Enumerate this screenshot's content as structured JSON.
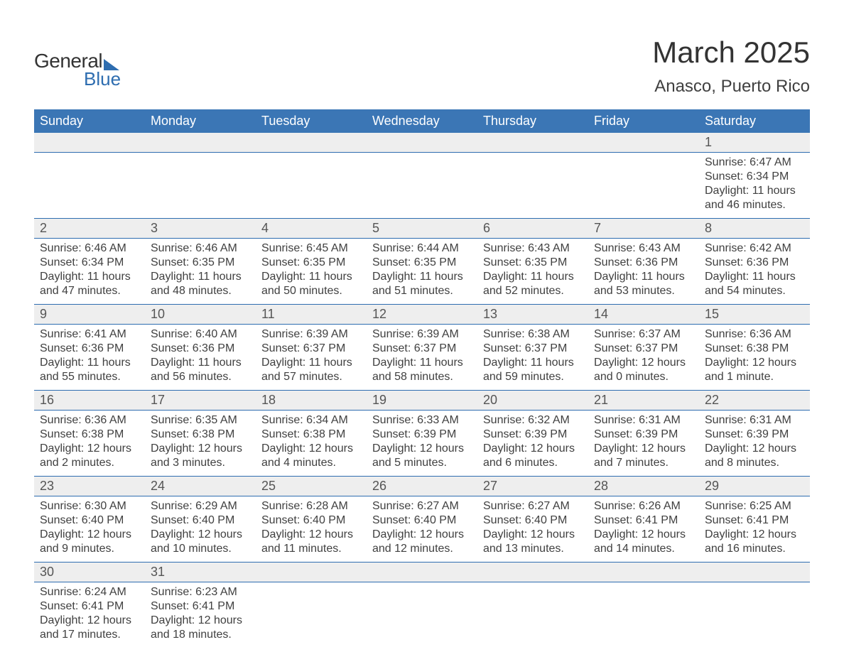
{
  "logo": {
    "text1": "General",
    "text2": "Blue"
  },
  "title": "March 2025",
  "location": "Anasco, Puerto Rico",
  "colors": {
    "header_bg": "#3b76b5",
    "header_text": "#ffffff",
    "daynum_bg": "#eeeeee",
    "border": "#2e6db0",
    "body_text": "#404040",
    "logo_blue": "#2e6db0"
  },
  "day_labels": [
    "Sunday",
    "Monday",
    "Tuesday",
    "Wednesday",
    "Thursday",
    "Friday",
    "Saturday"
  ],
  "weeks": [
    [
      null,
      null,
      null,
      null,
      null,
      null,
      {
        "n": "1",
        "sunrise": "Sunrise: 6:47 AM",
        "sunset": "Sunset: 6:34 PM",
        "daylight": "Daylight: 11 hours and 46 minutes."
      }
    ],
    [
      {
        "n": "2",
        "sunrise": "Sunrise: 6:46 AM",
        "sunset": "Sunset: 6:34 PM",
        "daylight": "Daylight: 11 hours and 47 minutes."
      },
      {
        "n": "3",
        "sunrise": "Sunrise: 6:46 AM",
        "sunset": "Sunset: 6:35 PM",
        "daylight": "Daylight: 11 hours and 48 minutes."
      },
      {
        "n": "4",
        "sunrise": "Sunrise: 6:45 AM",
        "sunset": "Sunset: 6:35 PM",
        "daylight": "Daylight: 11 hours and 50 minutes."
      },
      {
        "n": "5",
        "sunrise": "Sunrise: 6:44 AM",
        "sunset": "Sunset: 6:35 PM",
        "daylight": "Daylight: 11 hours and 51 minutes."
      },
      {
        "n": "6",
        "sunrise": "Sunrise: 6:43 AM",
        "sunset": "Sunset: 6:35 PM",
        "daylight": "Daylight: 11 hours and 52 minutes."
      },
      {
        "n": "7",
        "sunrise": "Sunrise: 6:43 AM",
        "sunset": "Sunset: 6:36 PM",
        "daylight": "Daylight: 11 hours and 53 minutes."
      },
      {
        "n": "8",
        "sunrise": "Sunrise: 6:42 AM",
        "sunset": "Sunset: 6:36 PM",
        "daylight": "Daylight: 11 hours and 54 minutes."
      }
    ],
    [
      {
        "n": "9",
        "sunrise": "Sunrise: 6:41 AM",
        "sunset": "Sunset: 6:36 PM",
        "daylight": "Daylight: 11 hours and 55 minutes."
      },
      {
        "n": "10",
        "sunrise": "Sunrise: 6:40 AM",
        "sunset": "Sunset: 6:36 PM",
        "daylight": "Daylight: 11 hours and 56 minutes."
      },
      {
        "n": "11",
        "sunrise": "Sunrise: 6:39 AM",
        "sunset": "Sunset: 6:37 PM",
        "daylight": "Daylight: 11 hours and 57 minutes."
      },
      {
        "n": "12",
        "sunrise": "Sunrise: 6:39 AM",
        "sunset": "Sunset: 6:37 PM",
        "daylight": "Daylight: 11 hours and 58 minutes."
      },
      {
        "n": "13",
        "sunrise": "Sunrise: 6:38 AM",
        "sunset": "Sunset: 6:37 PM",
        "daylight": "Daylight: 11 hours and 59 minutes."
      },
      {
        "n": "14",
        "sunrise": "Sunrise: 6:37 AM",
        "sunset": "Sunset: 6:37 PM",
        "daylight": "Daylight: 12 hours and 0 minutes."
      },
      {
        "n": "15",
        "sunrise": "Sunrise: 6:36 AM",
        "sunset": "Sunset: 6:38 PM",
        "daylight": "Daylight: 12 hours and 1 minute."
      }
    ],
    [
      {
        "n": "16",
        "sunrise": "Sunrise: 6:36 AM",
        "sunset": "Sunset: 6:38 PM",
        "daylight": "Daylight: 12 hours and 2 minutes."
      },
      {
        "n": "17",
        "sunrise": "Sunrise: 6:35 AM",
        "sunset": "Sunset: 6:38 PM",
        "daylight": "Daylight: 12 hours and 3 minutes."
      },
      {
        "n": "18",
        "sunrise": "Sunrise: 6:34 AM",
        "sunset": "Sunset: 6:38 PM",
        "daylight": "Daylight: 12 hours and 4 minutes."
      },
      {
        "n": "19",
        "sunrise": "Sunrise: 6:33 AM",
        "sunset": "Sunset: 6:39 PM",
        "daylight": "Daylight: 12 hours and 5 minutes."
      },
      {
        "n": "20",
        "sunrise": "Sunrise: 6:32 AM",
        "sunset": "Sunset: 6:39 PM",
        "daylight": "Daylight: 12 hours and 6 minutes."
      },
      {
        "n": "21",
        "sunrise": "Sunrise: 6:31 AM",
        "sunset": "Sunset: 6:39 PM",
        "daylight": "Daylight: 12 hours and 7 minutes."
      },
      {
        "n": "22",
        "sunrise": "Sunrise: 6:31 AM",
        "sunset": "Sunset: 6:39 PM",
        "daylight": "Daylight: 12 hours and 8 minutes."
      }
    ],
    [
      {
        "n": "23",
        "sunrise": "Sunrise: 6:30 AM",
        "sunset": "Sunset: 6:40 PM",
        "daylight": "Daylight: 12 hours and 9 minutes."
      },
      {
        "n": "24",
        "sunrise": "Sunrise: 6:29 AM",
        "sunset": "Sunset: 6:40 PM",
        "daylight": "Daylight: 12 hours and 10 minutes."
      },
      {
        "n": "25",
        "sunrise": "Sunrise: 6:28 AM",
        "sunset": "Sunset: 6:40 PM",
        "daylight": "Daylight: 12 hours and 11 minutes."
      },
      {
        "n": "26",
        "sunrise": "Sunrise: 6:27 AM",
        "sunset": "Sunset: 6:40 PM",
        "daylight": "Daylight: 12 hours and 12 minutes."
      },
      {
        "n": "27",
        "sunrise": "Sunrise: 6:27 AM",
        "sunset": "Sunset: 6:40 PM",
        "daylight": "Daylight: 12 hours and 13 minutes."
      },
      {
        "n": "28",
        "sunrise": "Sunrise: 6:26 AM",
        "sunset": "Sunset: 6:41 PM",
        "daylight": "Daylight: 12 hours and 14 minutes."
      },
      {
        "n": "29",
        "sunrise": "Sunrise: 6:25 AM",
        "sunset": "Sunset: 6:41 PM",
        "daylight": "Daylight: 12 hours and 16 minutes."
      }
    ],
    [
      {
        "n": "30",
        "sunrise": "Sunrise: 6:24 AM",
        "sunset": "Sunset: 6:41 PM",
        "daylight": "Daylight: 12 hours and 17 minutes."
      },
      {
        "n": "31",
        "sunrise": "Sunrise: 6:23 AM",
        "sunset": "Sunset: 6:41 PM",
        "daylight": "Daylight: 12 hours and 18 minutes."
      },
      null,
      null,
      null,
      null,
      null
    ]
  ]
}
